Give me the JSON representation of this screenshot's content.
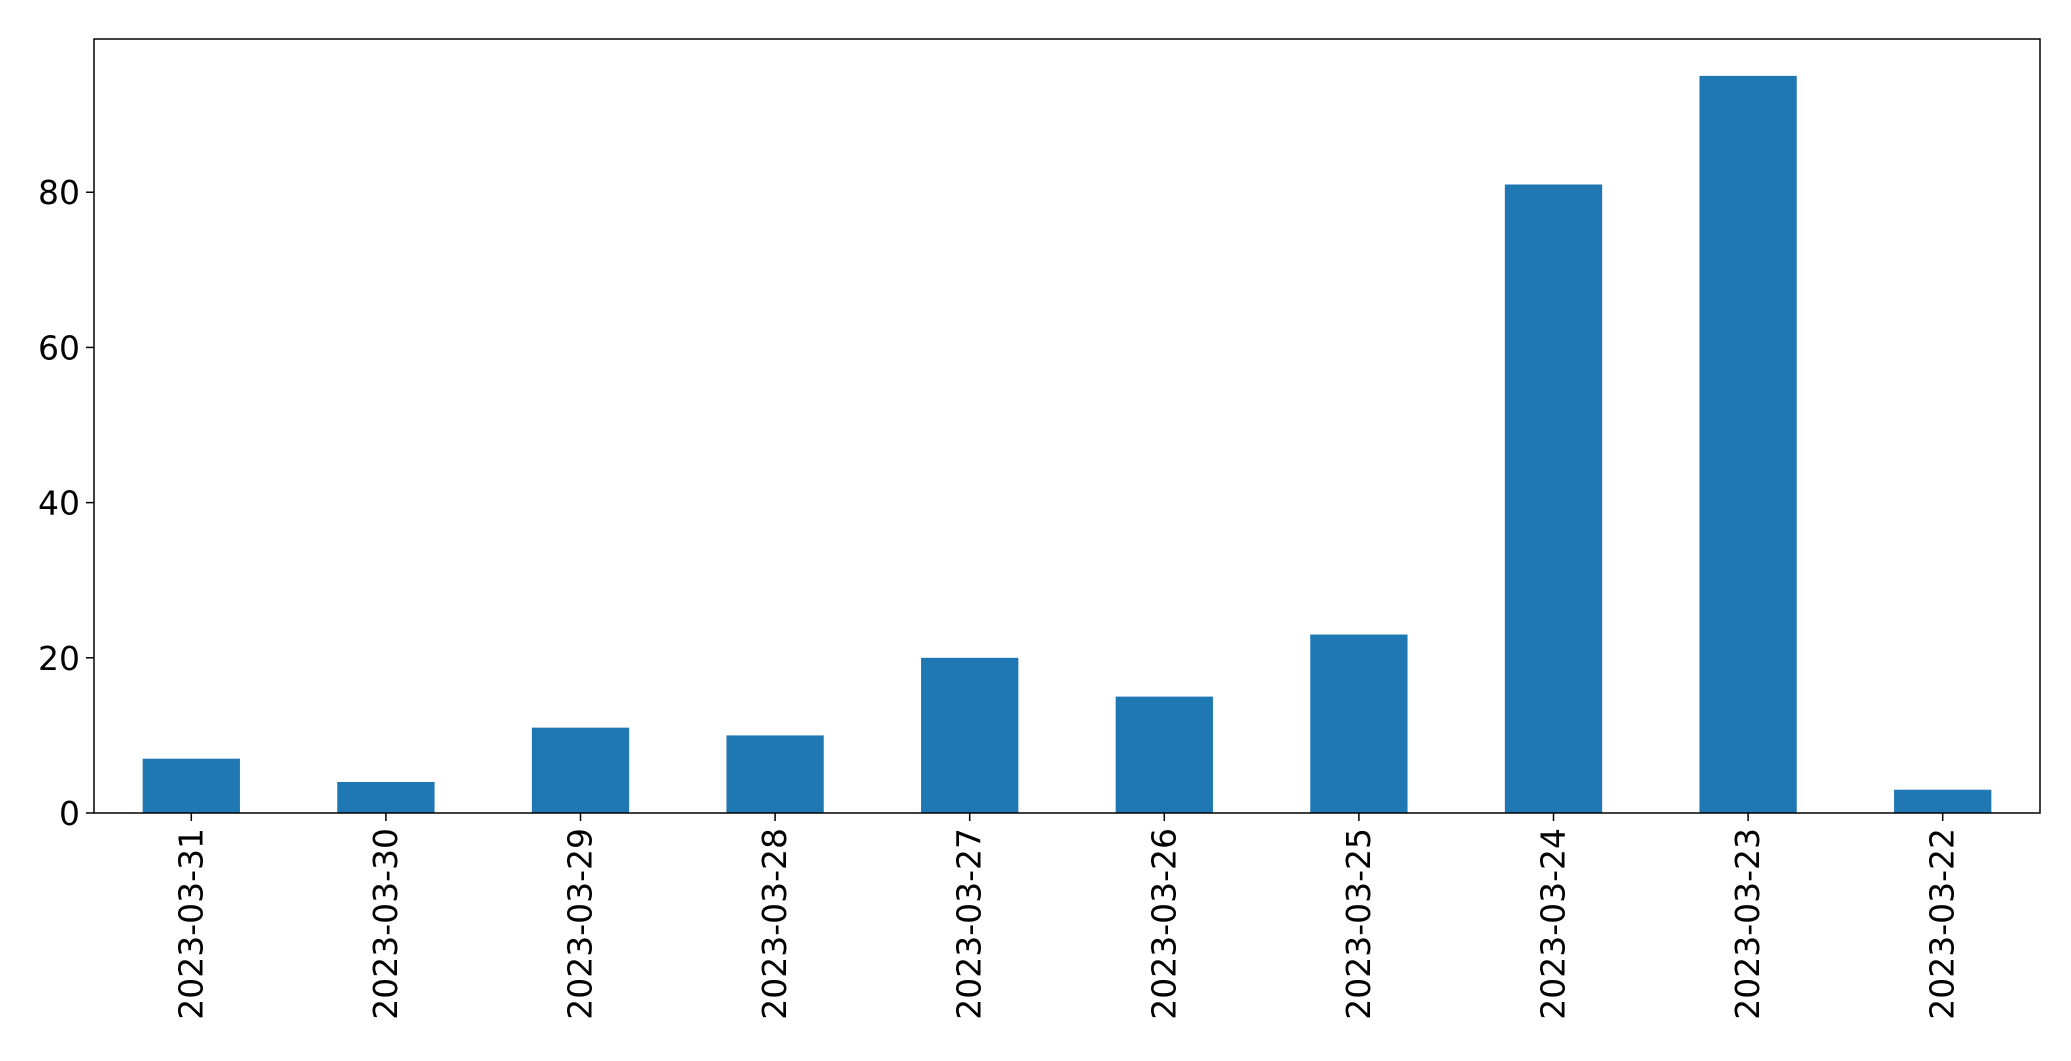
{
  "chart_data": {
    "type": "bar",
    "title": "",
    "xlabel": "",
    "ylabel": "",
    "categories": [
      "2023-03-31",
      "2023-03-30",
      "2023-03-29",
      "2023-03-28",
      "2023-03-27",
      "2023-03-26",
      "2023-03-25",
      "2023-03-24",
      "2023-03-23",
      "2023-03-22"
    ],
    "values": [
      7,
      4,
      11,
      10,
      20,
      15,
      23,
      81,
      95,
      3
    ],
    "ylim": [
      0,
      99.75
    ],
    "yticks": [
      0,
      20,
      40,
      60,
      80
    ],
    "ytick_labels": [
      "0",
      "20",
      "40",
      "60",
      "80"
    ],
    "grid": false,
    "legend": "none",
    "bar_color": "#1f77b4",
    "axis_color": "#000000",
    "xtick_rotation": "vertical"
  }
}
